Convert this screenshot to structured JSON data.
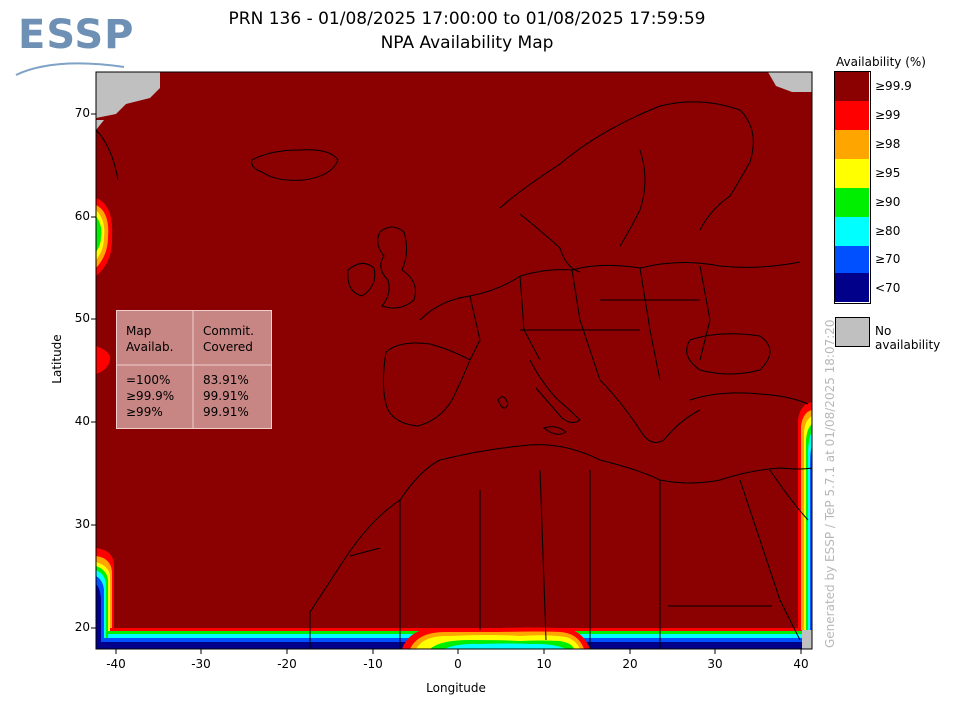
{
  "header": {
    "logo": "ESSP",
    "title_line1": "PRN 136 - 01/08/2025 17:00:00 to 01/08/2025 17:59:59",
    "title_line2": "NPA Availability Map"
  },
  "axes": {
    "xlabel": "Longitude",
    "ylabel": "Latitude",
    "x_ticks": [
      "-40",
      "-30",
      "-20",
      "-10",
      "0",
      "10",
      "20",
      "30",
      "40"
    ],
    "y_ticks": [
      "70",
      "60",
      "50",
      "40",
      "30",
      "20"
    ],
    "xlim": [
      -42,
      42
    ],
    "ylim": [
      18,
      74
    ]
  },
  "legend": {
    "title": "Availability (%)",
    "items": [
      {
        "label": "≥99.9",
        "color": "#8b0000"
      },
      {
        "label": "≥99",
        "color": "#ff0000"
      },
      {
        "label": "≥98",
        "color": "#ffa500"
      },
      {
        "label": "≥95",
        "color": "#ffff00"
      },
      {
        "label": "≥90",
        "color": "#00ee00"
      },
      {
        "label": "≥80",
        "color": "#00ffff"
      },
      {
        "label": "≥70",
        "color": "#0050ff"
      },
      {
        "label": "<70",
        "color": "#00008b"
      }
    ],
    "no_data": {
      "label": "No availability",
      "color": "#c0c0c0"
    }
  },
  "stats": {
    "col1_header": "Map\nAvailab.",
    "col2_header": "Commit.\nCovered",
    "col1_values": "=100%\n≥99.9%\n≥99%",
    "col2_values": "83.91%\n99.91%\n99.91%"
  },
  "footer_note": "Generated by ESSP / TeP 5.7.1 at 01/08/2025 18:07:20"
}
